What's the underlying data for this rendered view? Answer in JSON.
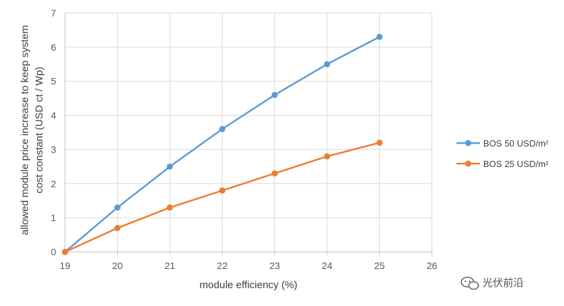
{
  "chart_data": {
    "type": "line",
    "xlabel": "module efficiency (%)",
    "ylabel_lines": [
      "allowed  module price increase to keep system",
      "cost constant (USD ct / Wp)"
    ],
    "xlim": [
      19,
      26
    ],
    "ylim": [
      0,
      7
    ],
    "xticks": [
      19,
      20,
      21,
      22,
      23,
      24,
      25,
      26
    ],
    "yticks": [
      0,
      1,
      2,
      3,
      4,
      5,
      6,
      7
    ],
    "grid": true,
    "legend_position": "right",
    "series": [
      {
        "name": "BOS 50 USD/m²",
        "color": "#5b9bd5",
        "x": [
          19,
          20,
          21,
          22,
          23,
          24,
          25
        ],
        "y": [
          0,
          1.3,
          2.5,
          3.6,
          4.6,
          5.5,
          6.3
        ]
      },
      {
        "name": "BOS 25 USD/m²",
        "color": "#ed7d31",
        "x": [
          19,
          20,
          21,
          22,
          23,
          24,
          25
        ],
        "y": [
          0,
          0.7,
          1.3,
          1.8,
          2.3,
          2.8,
          3.2
        ]
      }
    ]
  },
  "watermark": {
    "text": "光伏前沿",
    "icon": "wechat-icon"
  }
}
